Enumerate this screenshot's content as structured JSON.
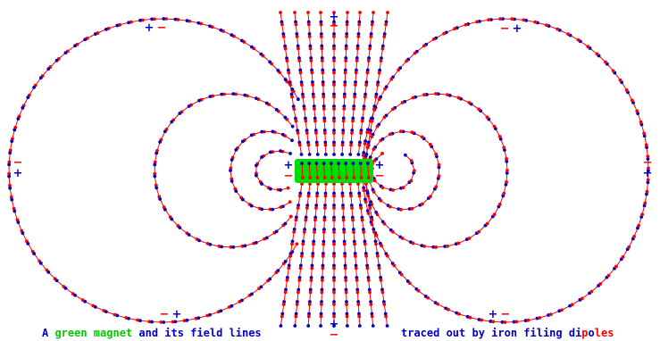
{
  "colors": {
    "background": "#ffffff",
    "north_dot": "#ff0000",
    "south_dot": "#0000cc",
    "link": "#ff0000",
    "magnet": "#00dd00",
    "plus": "#0000cc",
    "minus": "#ff0000"
  },
  "magnet": {
    "plus_label": "+",
    "minus_label": "−"
  },
  "caption": {
    "left_parts": [
      {
        "text": "A ",
        "color": "#0000cc"
      },
      {
        "text": "green magnet",
        "color": "#00cc00"
      },
      {
        "text": " and its field lines",
        "color": "#0000cc"
      }
    ],
    "right_parts": [
      {
        "text": "traced out by iron filing di",
        "color": "#0000cc"
      },
      {
        "text": "p",
        "color": "#ff0000"
      },
      {
        "text": "o",
        "color": "#0000cc"
      },
      {
        "text": "les",
        "color": "#ff0000"
      }
    ]
  },
  "icons": {
    "dipole": "iron-filing-dipole-icon",
    "plus": "plus-icon",
    "minus": "minus-icon"
  }
}
